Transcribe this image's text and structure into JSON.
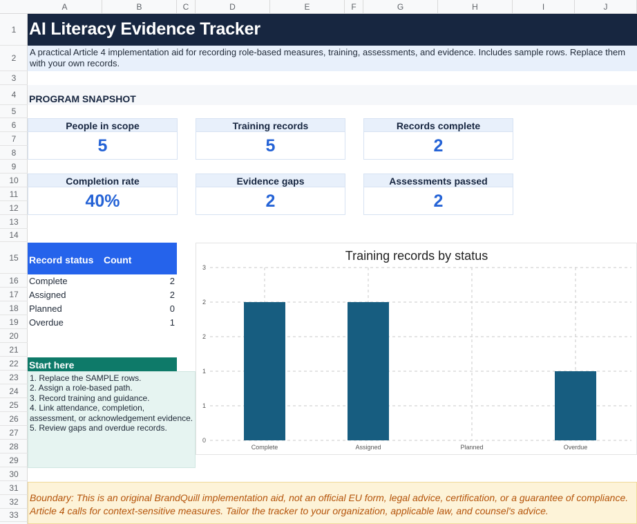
{
  "columns": [
    "A",
    "B",
    "C",
    "D",
    "E",
    "F",
    "G",
    "H",
    "I",
    "J"
  ],
  "rows": [
    "1",
    "2",
    "3",
    "4",
    "5",
    "6",
    "7",
    "8",
    "9",
    "10",
    "11",
    "12",
    "13",
    "14",
    "15",
    "16",
    "17",
    "18",
    "19",
    "20",
    "21",
    "22",
    "23",
    "24",
    "25",
    "26",
    "27",
    "28",
    "29",
    "30",
    "31",
    "32",
    "33"
  ],
  "title": "AI Literacy Evidence Tracker",
  "subtitle": "A practical Article 4 implementation aid for recording role-based measures, training, assessments, and evidence. Includes sample rows. Replace them with your own records.",
  "snapshot_label": "PROGRAM SNAPSHOT",
  "kpis": [
    {
      "label": "People in scope",
      "value": "5"
    },
    {
      "label": "Training records",
      "value": "5"
    },
    {
      "label": "Records complete",
      "value": "2"
    },
    {
      "label": "Completion rate",
      "value": "40%"
    },
    {
      "label": "Evidence gaps",
      "value": "2"
    },
    {
      "label": "Assessments passed",
      "value": "2"
    }
  ],
  "status_table": {
    "header_status": "Record status",
    "header_count": "Count",
    "rows": [
      {
        "name": "Complete",
        "count": "2"
      },
      {
        "name": "Assigned",
        "count": "2"
      },
      {
        "name": "Planned",
        "count": "0"
      },
      {
        "name": "Overdue",
        "count": "1"
      }
    ]
  },
  "start_here": {
    "title": "Start here",
    "items": [
      "1. Replace the SAMPLE rows.",
      "2. Assign a role-based path.",
      "3. Record training and guidance.",
      "4. Link attendance, completion,",
      "assessment, or acknowledgement evidence.",
      "5. Review gaps and overdue records."
    ]
  },
  "boundary_text": "Boundary: This is an original BrandQuill implementation aid, not an official EU form, legal advice, certification, or a guarantee of compliance. Article 4 calls for context-sensitive measures. Tailor the tracker to your organization, applicable law, and counsel's advice.",
  "colors": {
    "banner": "#172640",
    "accent_blue": "#2563eb",
    "kpi_value": "#2563d6",
    "start_green": "#0e7a69",
    "bar": "#175d80",
    "boundary_text": "#b45309"
  },
  "chart_data": {
    "type": "bar",
    "title": "Training records by status",
    "categories": [
      "Complete",
      "Assigned",
      "Planned",
      "Overdue"
    ],
    "values": [
      2,
      2,
      0,
      1
    ],
    "y_tick_labels": [
      "0",
      "1",
      "1",
      "2",
      "2",
      "3"
    ],
    "ylim": [
      0,
      2.5
    ],
    "grid": true,
    "legend": "none"
  }
}
